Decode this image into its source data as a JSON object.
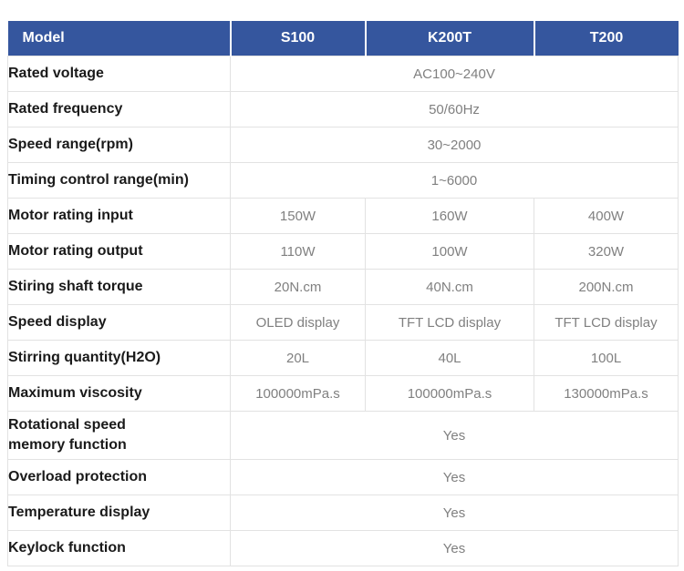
{
  "table": {
    "header": {
      "model_label": "Model",
      "columns": [
        "S100",
        "K200T",
        "T200"
      ]
    },
    "rows": [
      {
        "label": "Rated voltage",
        "value": "AC100~240V"
      },
      {
        "label": "Rated frequency",
        "value": "50/60Hz"
      },
      {
        "label": "Speed range(rpm)",
        "value": "30~2000"
      },
      {
        "label": "Timing control range(min)",
        "value": "1~6000"
      },
      {
        "label": "Motor rating input",
        "values": [
          "150W",
          "160W",
          "400W"
        ]
      },
      {
        "label": "Motor rating output",
        "values": [
          "110W",
          "100W",
          "320W"
        ]
      },
      {
        "label": "Stiring shaft torque",
        "values": [
          "20N.cm",
          "40N.cm",
          "200N.cm"
        ]
      },
      {
        "label": "Speed display",
        "values": [
          "OLED display",
          "TFT LCD display",
          "TFT LCD display"
        ]
      },
      {
        "label": "Stirring quantity(H2O)",
        "values": [
          "20L",
          "40L",
          "100L"
        ]
      },
      {
        "label": "Maximum viscosity",
        "values": [
          "100000mPa.s",
          "100000mPa.s",
          "130000mPa.s"
        ]
      },
      {
        "label": "Rotational speed\nmemory function",
        "value": "Yes",
        "two_line": true
      },
      {
        "label": "Overload protection",
        "value": "Yes"
      },
      {
        "label": "Temperature display",
        "value": "Yes"
      },
      {
        "label": "Keylock function",
        "value": "Yes"
      }
    ],
    "colors": {
      "header_bg": "#35569E",
      "header_text": "#FFFFFF",
      "label_text": "#1A1A1A",
      "value_text": "#808080",
      "border": "#E2E2E2"
    }
  }
}
